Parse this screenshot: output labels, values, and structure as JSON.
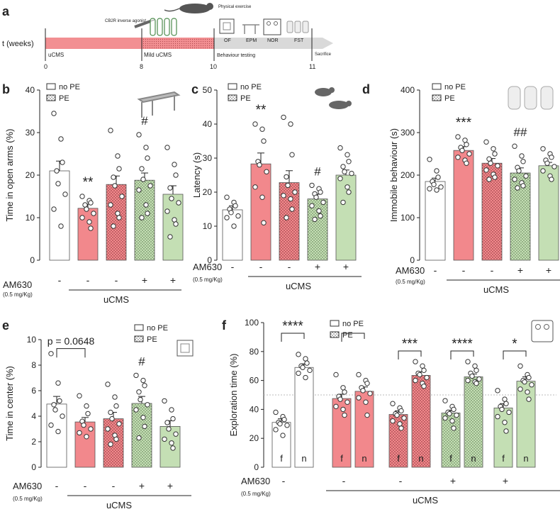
{
  "colors": {
    "white": "#ffffff",
    "red": "#f2888c",
    "green": "#c4dfb4",
    "axis": "#222222",
    "timeline_red": "#f28f92",
    "arrow_grey": "#d9d9d9"
  },
  "timeline": {
    "panel_label": "a",
    "axis_label": "t (weeks)",
    "ticks": [
      "0",
      "8",
      "10",
      "11"
    ],
    "phases": [
      "uCMS",
      "Mild uCMS",
      "Behaviour testing"
    ],
    "sacrifice": "Sacrifice",
    "drug": "CB2R inverse agonist",
    "exercise": "Physical exercise",
    "tests": [
      "OF",
      "EPM",
      "NOR",
      "FST"
    ]
  },
  "legend": {
    "no_pe": "no PE",
    "pe": "PE"
  },
  "am630": {
    "label": "AM630",
    "dose": "(0.5 mg/Kg)",
    "signs": [
      "-",
      "-",
      "-",
      "+",
      "+"
    ],
    "group": "uCMS"
  },
  "chart_data": [
    {
      "panel": "b",
      "type": "bar",
      "ylabel": "Time in open arms (%)",
      "ylim": [
        0,
        40
      ],
      "yticks": [
        "0",
        "10",
        "20",
        "30",
        "40"
      ],
      "values": [
        21.0,
        12.2,
        17.8,
        18.8,
        15.5
      ],
      "errors": [
        2.3,
        1.0,
        2.0,
        1.7,
        2.0
      ],
      "annotations": [
        "",
        "**",
        "",
        "#",
        ""
      ],
      "points": [
        [
          34.5,
          28.5,
          23.0,
          21.0,
          18.0,
          15.5,
          12.0,
          8.0
        ],
        [
          15.0,
          14.0,
          13.5,
          13.0,
          12.0,
          11.0,
          10.0,
          9.0,
          7.5
        ],
        [
          30.5,
          24.5,
          21.5,
          19.5,
          17.5,
          15.0,
          13.0,
          11.0,
          10.0,
          8.0
        ],
        [
          29.5,
          26.5,
          24.0,
          21.5,
          19.0,
          17.5,
          16.5,
          13.0,
          11.0,
          10.0
        ],
        [
          26.5,
          22.5,
          20.0,
          17.0,
          14.5,
          13.5,
          11.5,
          9.5,
          8.5,
          5.5
        ]
      ]
    },
    {
      "panel": "c",
      "type": "bar",
      "ylabel": "Latency (s)",
      "ylim": [
        0,
        50
      ],
      "yticks": [
        "0",
        "10",
        "20",
        "30",
        "40",
        "50"
      ],
      "values": [
        14.8,
        28.3,
        22.8,
        18.0,
        25.0
      ],
      "errors": [
        1.2,
        3.2,
        3.5,
        1.4,
        1.5
      ],
      "annotations": [
        "",
        "**",
        "",
        "#",
        ""
      ],
      "points": [
        [
          18.5,
          17.0,
          16.0,
          15.0,
          14.0,
          13.0,
          12.5,
          10.0
        ],
        [
          40.0,
          38.5,
          35.0,
          29.0,
          28.0,
          26.0,
          21.5,
          18.5,
          11.0
        ],
        [
          42.0,
          40.0,
          31.0,
          24.5,
          22.0,
          20.0,
          19.0,
          18.0,
          15.0,
          12.5
        ],
        [
          22.0,
          21.0,
          20.0,
          19.5,
          18.5,
          17.0,
          16.0,
          14.5,
          13.0,
          12.0
        ],
        [
          33.0,
          31.0,
          29.0,
          27.5,
          26.0,
          25.5,
          24.0,
          21.5,
          20.0,
          17.0
        ]
      ]
    },
    {
      "panel": "d",
      "type": "bar",
      "ylabel": "Immobile behaviour (s)",
      "ylim": [
        0,
        400
      ],
      "yticks": [
        "0",
        "100",
        "200",
        "300",
        "400"
      ],
      "values": [
        185,
        258,
        228,
        205,
        222
      ],
      "errors": [
        8,
        9,
        11,
        12,
        8
      ],
      "annotations": [
        "",
        "***",
        "",
        "##",
        ""
      ],
      "points": [
        [
          237,
          210,
          195,
          185,
          178,
          172,
          168,
          165
        ],
        [
          290,
          282,
          272,
          265,
          258,
          250,
          242,
          235,
          228
        ],
        [
          278,
          262,
          250,
          238,
          228,
          222,
          212,
          202,
          195,
          190
        ],
        [
          268,
          245,
          232,
          218,
          210,
          198,
          190,
          182,
          175,
          170
        ],
        [
          262,
          250,
          242,
          235,
          228,
          220,
          210,
          198,
          190
        ]
      ]
    },
    {
      "panel": "e",
      "type": "bar",
      "ylabel": "Time in center (%)",
      "ylim": [
        0,
        10
      ],
      "yticks": [
        "0",
        "2",
        "4",
        "6",
        "8",
        "10"
      ],
      "values": [
        4.95,
        3.55,
        3.8,
        5.0,
        3.2
      ],
      "errors": [
        0.6,
        0.35,
        0.5,
        0.55,
        0.45
      ],
      "annotations": [
        "",
        "",
        "",
        "#",
        ""
      ],
      "comparison_text": "p = 0.0648",
      "points": [
        [
          8.9,
          6.6,
          5.2,
          4.9,
          4.5,
          4.0,
          3.3,
          2.8
        ],
        [
          5.6,
          4.8,
          4.2,
          3.6,
          3.3,
          3.0,
          2.7,
          2.4
        ],
        [
          6.5,
          5.5,
          4.8,
          4.3,
          3.8,
          3.4,
          3.0,
          2.5,
          2.2,
          1.8
        ],
        [
          7.2,
          6.8,
          6.4,
          5.9,
          5.3,
          4.9,
          4.5,
          3.9,
          3.2,
          2.3
        ],
        [
          5.2,
          4.5,
          3.8,
          3.5,
          3.0,
          2.6,
          2.2,
          1.9,
          1.5
        ]
      ]
    },
    {
      "panel": "f",
      "type": "bar",
      "ylabel": "Exploration time (%)",
      "ylim": [
        0,
        100
      ],
      "yticks": [
        "0",
        "20",
        "40",
        "60",
        "80",
        "100"
      ],
      "reference_line": 50,
      "categories": [
        "f",
        "n",
        "f",
        "n",
        "f",
        "n",
        "f",
        "n",
        "f",
        "n"
      ],
      "group_signs": [
        "-",
        "-",
        "-",
        "+",
        "+"
      ],
      "values": [
        31,
        69,
        47.5,
        52.5,
        36.5,
        63.5,
        37.5,
        62.5,
        41,
        59.5
      ],
      "errors": [
        2.5,
        2.5,
        3,
        3,
        2.5,
        2.5,
        2,
        2,
        3,
        3
      ],
      "annotations": [
        "****",
        "",
        "***",
        "****",
        "*"
      ],
      "points": [
        [
          38,
          35,
          33,
          31,
          30,
          29,
          26,
          22
        ],
        [
          78,
          75,
          72,
          70,
          69,
          67,
          65,
          62
        ],
        [
          64,
          55,
          52,
          49,
          47,
          45,
          42,
          40,
          36
        ],
        [
          64,
          60,
          58,
          55,
          53,
          51,
          48,
          45,
          36
        ],
        [
          44,
          41,
          39,
          37,
          36,
          34,
          32,
          30,
          27
        ],
        [
          73,
          70,
          67,
          65,
          64,
          62,
          60,
          58,
          56
        ],
        [
          46,
          42,
          40,
          38,
          37,
          36,
          34,
          32,
          27
        ],
        [
          73,
          70,
          67,
          65,
          63,
          61,
          60,
          59,
          58
        ],
        [
          53,
          47,
          44,
          42,
          40,
          38,
          35,
          31,
          25
        ],
        [
          70,
          64,
          62,
          60,
          59,
          57,
          54,
          52,
          47
        ]
      ]
    }
  ]
}
